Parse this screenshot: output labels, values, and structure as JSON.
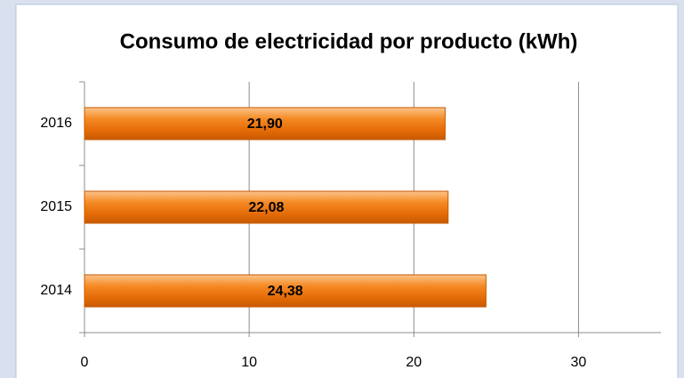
{
  "chart_data": {
    "type": "bar",
    "orientation": "horizontal",
    "title": "Consumo de electricidad por producto (kWh)",
    "categories": [
      "2014",
      "2015",
      "2016"
    ],
    "values": [
      24.38,
      22.08,
      21.9
    ],
    "value_labels": [
      "24,38",
      "22,08",
      "21,90"
    ],
    "color": "#f07c12",
    "xlim": [
      0,
      35
    ],
    "xticks": [
      0,
      10,
      20,
      30
    ],
    "grid": true
  }
}
